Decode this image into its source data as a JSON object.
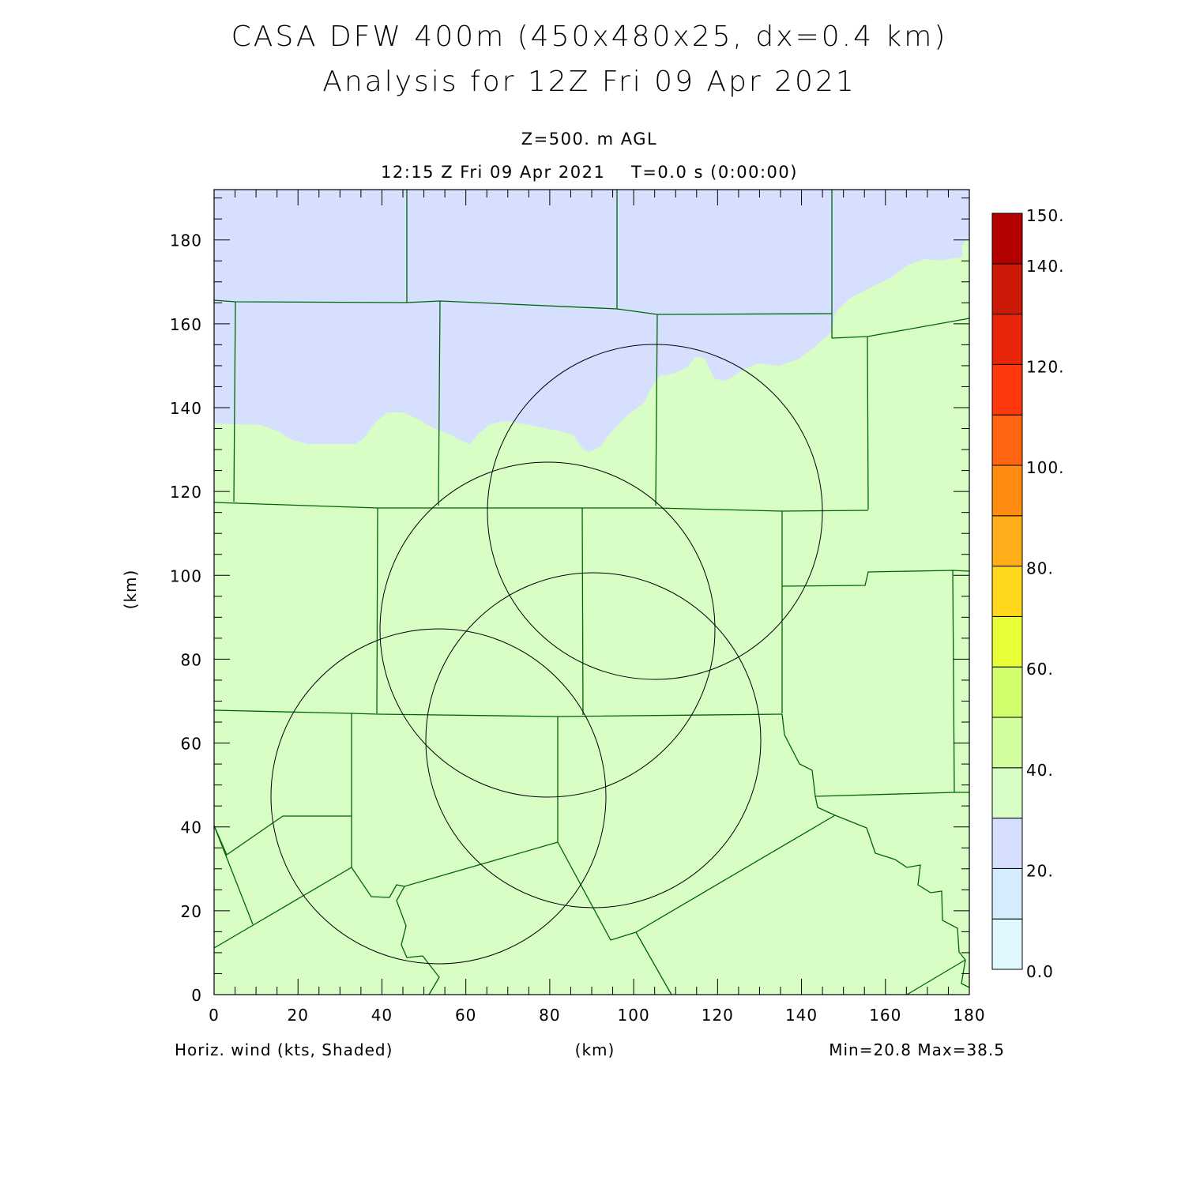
{
  "chart_data": {
    "type": "heatmap",
    "title": "CASA DFW 400m (450x480x25, dx=0.4 km)",
    "subtitle": "Analysis for 12Z Fri 09 Apr 2021",
    "level_label": "Z=500. m AGL",
    "time_label": "12:15 Z Fri 09 Apr 2021    T=0.0 s (0:00:00)",
    "field_label": "Horiz. wind (kts, Shaded)",
    "xlabel": "(km)",
    "ylabel": "(km)",
    "xlim": [
      0,
      180
    ],
    "ylim": [
      0,
      192
    ],
    "x_ticks": [
      "0",
      "20",
      "40",
      "60",
      "80",
      "100",
      "120",
      "140",
      "160",
      "180"
    ],
    "y_ticks": [
      "0",
      "20",
      "40",
      "60",
      "80",
      "100",
      "120",
      "140",
      "160",
      "180"
    ],
    "minmax_label": "Min=20.8 Max=38.5",
    "min": 20.8,
    "max": 38.5,
    "colorbar": {
      "levels": [
        0,
        10,
        20,
        30,
        40,
        50,
        60,
        70,
        80,
        90,
        100,
        110,
        120,
        130,
        140,
        150
      ],
      "labels": [
        "0.0",
        "20.",
        "40.",
        "60.",
        "80.",
        "100.",
        "120.",
        "140.",
        "150."
      ],
      "label_values": [
        0,
        20,
        40,
        60,
        80,
        100,
        120,
        140,
        150
      ],
      "colors": [
        "#e2f8ff",
        "#d4ecfe",
        "#d6dffe",
        "#d8fec6",
        "#d2fe9e",
        "#d2fe6e",
        "#e8fe36",
        "#ffd81e",
        "#ffad18",
        "#ff8c12",
        "#ff6410",
        "#ff380c",
        "#e8240a",
        "#cc1806",
        "#b40000"
      ]
    },
    "regions": [
      {
        "name": "20-30 kts",
        "color": "#d6dffe",
        "location": "north"
      },
      {
        "name": "30-40 kts",
        "color": "#d8fec6",
        "location": "south"
      }
    ],
    "boundary_color": "#006400",
    "range_ring_color": "#000000"
  }
}
